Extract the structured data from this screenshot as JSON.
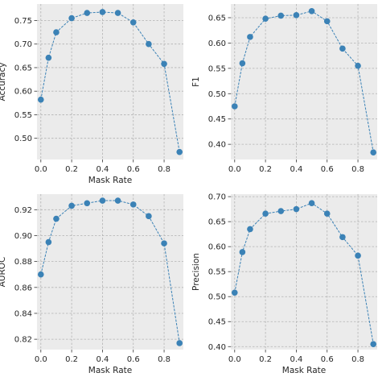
{
  "chart_data": [
    {
      "type": "line",
      "xlabel": "Mask Rate",
      "ylabel": "Accuracy",
      "grid": true,
      "x": [
        0.0,
        0.05,
        0.1,
        0.2,
        0.3,
        0.4,
        0.5,
        0.6,
        0.7,
        0.8,
        0.9
      ],
      "series": [
        {
          "values": [
            0.582,
            0.671,
            0.725,
            0.755,
            0.766,
            0.768,
            0.766,
            0.746,
            0.7,
            0.658,
            0.471
          ]
        }
      ],
      "xlim": [
        -0.025,
        0.925
      ],
      "ylim": [
        0.455,
        0.785
      ],
      "xticks": [
        0.0,
        0.2,
        0.4,
        0.6,
        0.8
      ],
      "xtick_labels": [
        "0.0",
        "0.2",
        "0.4",
        "0.6",
        "0.8"
      ],
      "yticks": [
        0.5,
        0.55,
        0.6,
        0.65,
        0.7,
        0.75
      ],
      "ytick_labels": [
        "0.50",
        "0.55",
        "0.60",
        "0.65",
        "0.70",
        "0.75"
      ],
      "color": "#3b82b6"
    },
    {
      "type": "line",
      "xlabel": "",
      "ylabel": "F1",
      "grid": true,
      "x": [
        0.0,
        0.05,
        0.1,
        0.2,
        0.3,
        0.4,
        0.5,
        0.6,
        0.7,
        0.8,
        0.9
      ],
      "series": [
        {
          "values": [
            0.475,
            0.56,
            0.612,
            0.648,
            0.654,
            0.655,
            0.663,
            0.643,
            0.589,
            0.555,
            0.384
          ]
        }
      ],
      "xlim": [
        -0.025,
        0.925
      ],
      "ylim": [
        0.37,
        0.677
      ],
      "xticks": [
        0.0,
        0.2,
        0.4,
        0.6,
        0.8
      ],
      "xtick_labels": [
        "0.0",
        "0.2",
        "0.4",
        "0.6",
        "0.8"
      ],
      "yticks": [
        0.4,
        0.45,
        0.5,
        0.55,
        0.6,
        0.65
      ],
      "ytick_labels": [
        "0.40",
        "0.45",
        "0.50",
        "0.55",
        "0.60",
        "0.65"
      ],
      "color": "#3b82b6"
    },
    {
      "type": "line",
      "xlabel": "Mask Rate",
      "ylabel": "AUROC",
      "grid": true,
      "x": [
        0.0,
        0.05,
        0.1,
        0.2,
        0.3,
        0.4,
        0.5,
        0.6,
        0.7,
        0.8,
        0.9
      ],
      "series": [
        {
          "values": [
            0.87,
            0.895,
            0.913,
            0.923,
            0.925,
            0.927,
            0.927,
            0.924,
            0.915,
            0.894,
            0.817
          ]
        }
      ],
      "xlim": [
        -0.025,
        0.925
      ],
      "ylim": [
        0.812,
        0.932
      ],
      "xticks": [
        0.0,
        0.2,
        0.4,
        0.6,
        0.8
      ],
      "xtick_labels": [
        "0.0",
        "0.2",
        "0.4",
        "0.6",
        "0.8"
      ],
      "yticks": [
        0.82,
        0.84,
        0.86,
        0.88,
        0.9,
        0.92
      ],
      "ytick_labels": [
        "0.82",
        "0.84",
        "0.86",
        "0.88",
        "0.90",
        "0.92"
      ],
      "color": "#3b82b6"
    },
    {
      "type": "line",
      "xlabel": "Mask Rate",
      "ylabel": "Precision",
      "grid": true,
      "x": [
        0.0,
        0.05,
        0.1,
        0.2,
        0.3,
        0.4,
        0.5,
        0.6,
        0.7,
        0.8,
        0.9
      ],
      "series": [
        {
          "values": [
            0.508,
            0.589,
            0.635,
            0.666,
            0.671,
            0.675,
            0.687,
            0.666,
            0.619,
            0.582,
            0.405
          ]
        }
      ],
      "xlim": [
        -0.025,
        0.925
      ],
      "ylim": [
        0.394,
        0.705
      ],
      "xticks": [
        0.0,
        0.2,
        0.4,
        0.6,
        0.8
      ],
      "xtick_labels": [
        "0.0",
        "0.2",
        "0.4",
        "0.6",
        "0.8"
      ],
      "yticks": [
        0.4,
        0.45,
        0.5,
        0.55,
        0.6,
        0.65,
        0.7
      ],
      "ytick_labels": [
        "0.40",
        "0.45",
        "0.50",
        "0.55",
        "0.60",
        "0.65",
        "0.70"
      ],
      "color": "#3b82b6"
    }
  ]
}
